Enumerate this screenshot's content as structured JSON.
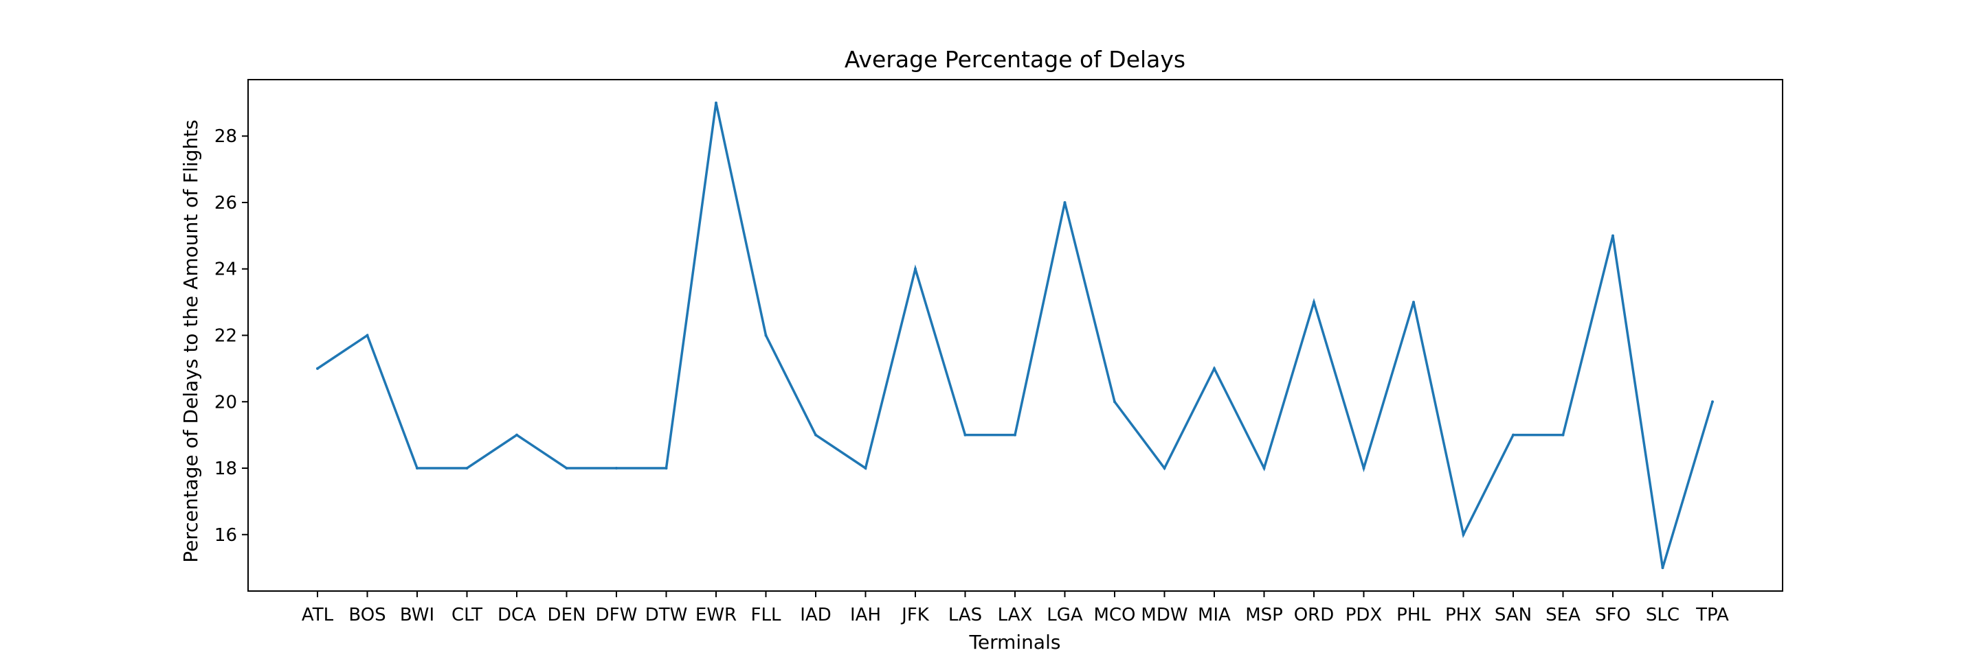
{
  "chart_data": {
    "type": "line",
    "title": "Average Percentage of Delays",
    "xlabel": "Terminals",
    "ylabel": "Percentage of Delays to the Amount of Flights",
    "categories": [
      "ATL",
      "BOS",
      "BWI",
      "CLT",
      "DCA",
      "DEN",
      "DFW",
      "DTW",
      "EWR",
      "FLL",
      "IAD",
      "IAH",
      "JFK",
      "LAS",
      "LAX",
      "LGA",
      "MCO",
      "MDW",
      "MIA",
      "MSP",
      "ORD",
      "PDX",
      "PHL",
      "PHX",
      "SAN",
      "SEA",
      "SFO",
      "SLC",
      "TPA"
    ],
    "series": [
      {
        "values": [
          21,
          22,
          18,
          18,
          19,
          18,
          18,
          18,
          29,
          22,
          19,
          18,
          24,
          19,
          19,
          26,
          20,
          18,
          21,
          18,
          23,
          18,
          23,
          16,
          19,
          19,
          25,
          15,
          20
        ],
        "color": "#1f77b4"
      }
    ],
    "ylim": [
      14.3,
      29.7
    ],
    "yticks": [
      16,
      18,
      20,
      22,
      24,
      26,
      28
    ],
    "grid": false,
    "legend": "none"
  }
}
